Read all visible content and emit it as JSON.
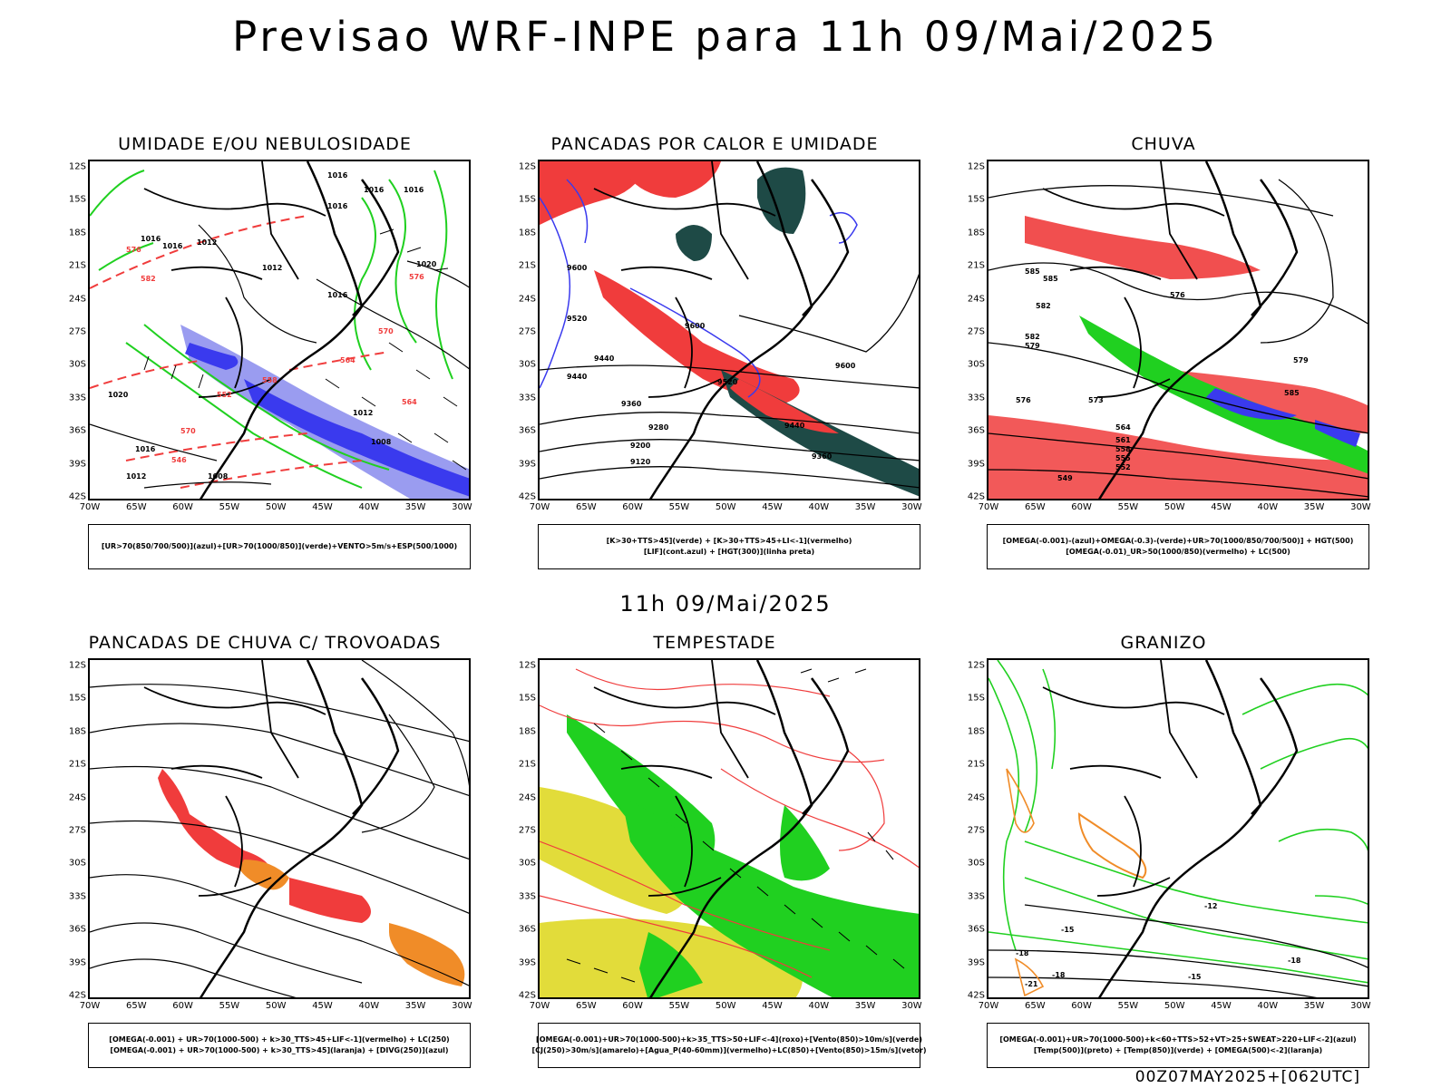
{
  "page": {
    "title": "Previsao WRF-INPE  para 11h 09/Mai/2025",
    "mid_title": "11h 09/Mai/2025",
    "footer": "00Z07MAY2025+[062UTC]"
  },
  "axes": {
    "lat_labels": [
      "12S",
      "15S",
      "18S",
      "21S",
      "24S",
      "27S",
      "30S",
      "33S",
      "36S",
      "39S",
      "42S"
    ],
    "lon_labels": [
      "70W",
      "65W",
      "60W",
      "55W",
      "50W",
      "45W",
      "40W",
      "35W",
      "30W"
    ]
  },
  "colors": {
    "blue": "#3a3aee",
    "light_blue": "#9a9cf0",
    "green": "#20d020",
    "red": "#f03c3c",
    "orange": "#f08c28",
    "yellow": "#e2dc3a",
    "dark_green": "#1e4a46",
    "black": "#000000"
  },
  "panels": [
    {
      "id": "umidade",
      "title": "UMIDADE E/OU NEBULOSIDADE",
      "legend": [
        "[UR>70(850/700/500)](azul)+[UR>70(1000/850)](verde)+VENTO>5m/s+ESP(500/1000)"
      ],
      "contour_labels": [
        "1016",
        "1016",
        "1016",
        "1016",
        "1012",
        "1012",
        "1016",
        "1020",
        "1016",
        "1016",
        "1012",
        "1008",
        "1008",
        "1016",
        "1012",
        "1020",
        "576",
        "570",
        "564",
        "558",
        "552",
        "546",
        "570",
        "576",
        "582",
        "564"
      ]
    },
    {
      "id": "pancadas-calor",
      "title": "PANCADAS POR CALOR E UMIDADE",
      "legend": [
        "[K>30+TTS>45](verde) + [K>30+TTS>45+LI<-1](vermelho)",
        "[LIF](cont.azul) + [HGT(300)](linha preta)"
      ],
      "contour_labels": [
        "9600",
        "9520",
        "9440",
        "9440",
        "9600",
        "9520",
        "9360",
        "9280",
        "9200",
        "9120",
        "9440",
        "9360",
        "9600"
      ]
    },
    {
      "id": "chuva",
      "title": "CHUVA",
      "legend": [
        "[OMEGA(-0.001)-(azul)+OMEGA(-0.3)-(verde)+UR>70(1000/850/700/500)] + HGT(500)",
        "[OMEGA(-0.01)_UR>50(1000/850)(vermelho) + LC(500)"
      ],
      "contour_labels": [
        "585",
        "585",
        "582",
        "582",
        "579",
        "576",
        "573",
        "576",
        "579",
        "585",
        "564",
        "561",
        "558",
        "555",
        "552",
        "549"
      ]
    },
    {
      "id": "pancadas-trovoadas",
      "title": "PANCADAS DE CHUVA C/ TROVOADAS",
      "legend": [
        "[OMEGA(-0.001) + UR>70(1000-500) + k>30_TTS>45+LIF<-1](vermelho) + LC(250)",
        "[OMEGA(-0.001) + UR>70(1000-500) + k>30_TTS>45](laranja) + [DIVG(250)](azul)"
      ],
      "contour_labels": []
    },
    {
      "id": "tempestade",
      "title": "TEMPESTADE",
      "legend": [
        "[OMEGA(-0.001)+UR>70(1000-500)+k>35_TTS>50+LIF<-4](roxo)+[Vento(850)>10m/s](verde)",
        "[CJ(250)>30m/s](amarelo)+[Agua_P(40-60mm)](vermelho)+LC(850)+[Vento(850)>15m/s](vetor)"
      ],
      "contour_labels": []
    },
    {
      "id": "granizo",
      "title": "GRANIZO",
      "legend": [
        "[OMEGA(-0.001)+UR>70(1000-500)+k<60+TTS>52+VT>25+SWEAT>220+LIF<-2](azul)",
        "[Temp(500)](preto) + [Temp(850)](verde) + [OMEGA(500)<-2](laranja)"
      ],
      "contour_labels": [
        "-12",
        "-15",
        "-18",
        "-18",
        "-15",
        "-18",
        "-21"
      ]
    }
  ]
}
